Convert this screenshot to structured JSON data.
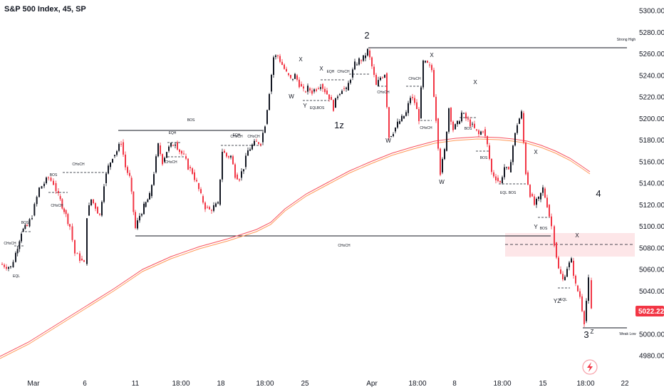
{
  "chart_data": {
    "type": "candlestick",
    "title": "S&P 500 Index, 45, SP",
    "ylim": [
      4970,
      5310
    ],
    "y_ticks": [
      "5300.00",
      "5280.00",
      "5260.00",
      "5240.00",
      "5220.00",
      "5200.00",
      "5180.00",
      "5160.00",
      "5140.00",
      "5120.00",
      "5100.00",
      "5080.00",
      "5060.00",
      "5040.00",
      "5020.00",
      "5000.00",
      "4980.00"
    ],
    "x_ticks": [
      "Mar",
      "6",
      "11",
      "18:00",
      "18",
      "18:00",
      "25",
      "Apr",
      "18:00",
      "8",
      "18:00",
      "15",
      "18:00",
      "22"
    ],
    "last_price": "5022.22",
    "colors": {
      "up": "#131722",
      "down": "#f23645",
      "ma": "#f7525f",
      "ma2": "#ff9a5a",
      "zone": "#fde2e4",
      "badge": "#f23645"
    },
    "annotations": [
      "BOS",
      "CHoCH",
      "CHoCH",
      "EQL",
      "BOS",
      "CHoCH",
      "BOS",
      "EQH",
      "CHoCH",
      "CHoCH",
      "EQH",
      "CHoCH",
      "X",
      "W",
      "Y",
      "X",
      "EQH",
      "CHoCH",
      "EQL",
      "BOS",
      "1z",
      "2",
      "CHoCH",
      "X",
      "CHoCH",
      "CHoCH",
      "W",
      "W",
      "X",
      "BOS",
      "BOS",
      "EQL",
      "BOS",
      "X",
      "Y",
      "BOS",
      "CHoCH",
      "X",
      "YZ",
      "EQL",
      "4",
      "3",
      "Z",
      "Strong High",
      "Weak Low"
    ]
  }
}
